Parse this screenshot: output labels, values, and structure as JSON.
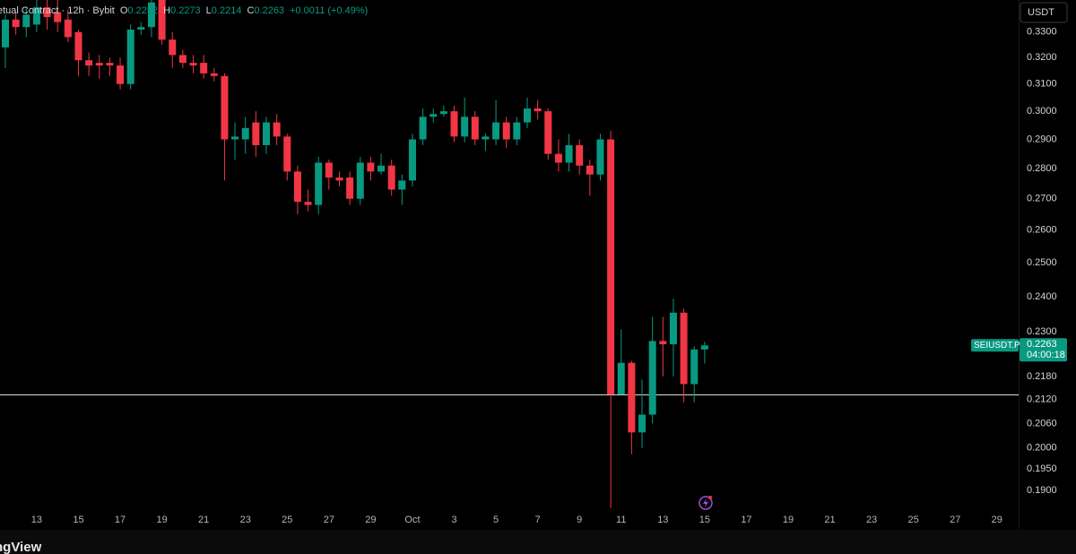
{
  "chart_data": {
    "type": "candlestick",
    "header": {
      "name": "etual Contract · 12h · Bybit",
      "o_label": "O",
      "h_label": "H",
      "l_label": "L",
      "c_label": "C",
      "change": "+0.0011 (+0.49%)"
    },
    "currency_button": "USDT",
    "countdown": "04:00:18",
    "footer": "ngView",
    "categories": [
      null,
      null,
      null,
      null,
      null,
      null,
      null,
      null,
      null,
      null,
      null,
      null,
      null,
      null,
      null,
      null,
      null,
      null,
      null,
      null,
      null,
      null,
      null,
      null,
      null,
      null,
      null,
      null,
      null,
      null,
      null,
      null,
      null,
      null,
      null,
      null,
      null,
      null,
      null,
      null,
      null,
      null,
      null,
      null,
      null,
      null,
      null,
      null,
      null,
      null,
      null,
      null,
      null,
      null,
      null,
      null,
      null,
      null,
      null,
      null,
      null,
      null,
      null,
      null,
      null,
      null,
      null,
      null
    ],
    "xticks": [
      "13",
      "15",
      "17",
      "19",
      "21",
      "23",
      "25",
      "27",
      "29",
      "Oct",
      "3",
      "5",
      "7",
      "9",
      "11",
      "13",
      "15",
      "17",
      "19",
      "21",
      "23",
      "25",
      "27",
      "29"
    ],
    "series": [
      {
        "name": "SEIUSDT.P",
        "up_color": "#089981",
        "down_color": "#f23645",
        "open": [
          0.324,
          0.335,
          0.332,
          0.333,
          0.34,
          0.338,
          0.335,
          0.33,
          0.319,
          0.318,
          0.318,
          0.317,
          0.31,
          0.331,
          0.332,
          0.343,
          0.327,
          0.321,
          0.318,
          0.318,
          0.314,
          0.313,
          0.29,
          0.29,
          0.296,
          0.288,
          0.296,
          0.291,
          0.279,
          0.269,
          0.268,
          0.282,
          0.277,
          0.277,
          0.27,
          0.282,
          0.279,
          0.281,
          0.273,
          0.276,
          0.29,
          0.298,
          0.299,
          0.3,
          0.291,
          0.298,
          0.29,
          0.29,
          0.296,
          0.29,
          0.296,
          0.301,
          0.3,
          0.285,
          0.282,
          0.288,
          0.281,
          0.278,
          0.29,
          0.2133,
          0.2216,
          0.2038,
          0.2082,
          0.2275,
          0.2266,
          0.2354,
          0.216,
          0.2252
        ],
        "high": [
          0.337,
          0.338,
          0.34,
          0.343,
          0.343,
          0.343,
          0.339,
          0.331,
          0.322,
          0.321,
          0.32,
          0.32,
          0.333,
          0.334,
          0.343,
          0.343,
          0.33,
          0.323,
          0.321,
          0.321,
          0.316,
          0.314,
          0.296,
          0.298,
          0.3,
          0.298,
          0.299,
          0.292,
          0.281,
          0.273,
          0.284,
          0.283,
          0.279,
          0.279,
          0.284,
          0.284,
          0.285,
          0.283,
          0.278,
          0.292,
          0.301,
          0.301,
          0.302,
          0.302,
          0.305,
          0.3,
          0.292,
          0.304,
          0.298,
          0.298,
          0.305,
          0.304,
          0.301,
          0.29,
          0.292,
          0.29,
          0.283,
          0.292,
          0.293,
          0.2307,
          0.2221,
          0.2172,
          0.2342,
          0.2342,
          0.2394,
          0.2365,
          0.226,
          0.2273
        ],
        "low": [
          0.316,
          0.329,
          0.328,
          0.33,
          0.331,
          0.33,
          0.326,
          0.313,
          0.313,
          0.312,
          0.313,
          0.308,
          0.308,
          0.329,
          0.328,
          0.325,
          0.316,
          0.316,
          0.314,
          0.312,
          0.311,
          0.276,
          0.283,
          0.285,
          0.284,
          0.285,
          0.288,
          0.276,
          0.265,
          0.266,
          0.265,
          0.273,
          0.274,
          0.268,
          0.268,
          0.276,
          0.278,
          0.271,
          0.268,
          0.274,
          0.288,
          0.296,
          0.298,
          0.289,
          0.289,
          0.288,
          0.286,
          0.288,
          0.287,
          0.288,
          0.294,
          0.297,
          0.283,
          0.279,
          0.279,
          0.278,
          0.271,
          0.276,
          0.186,
          0.2133,
          0.1985,
          0.2,
          0.206,
          0.218,
          0.218,
          0.2113,
          0.2113,
          0.2214
        ],
        "close": [
          0.335,
          0.332,
          0.337,
          0.34,
          0.336,
          0.334,
          0.328,
          0.319,
          0.317,
          0.317,
          0.317,
          0.31,
          0.331,
          0.332,
          0.342,
          0.327,
          0.321,
          0.318,
          0.317,
          0.314,
          0.313,
          0.29,
          0.291,
          0.294,
          0.288,
          0.296,
          0.291,
          0.279,
          0.269,
          0.268,
          0.282,
          0.277,
          0.276,
          0.27,
          0.282,
          0.279,
          0.281,
          0.273,
          0.276,
          0.29,
          0.298,
          0.299,
          0.3,
          0.291,
          0.298,
          0.29,
          0.291,
          0.296,
          0.29,
          0.296,
          0.301,
          0.3,
          0.285,
          0.282,
          0.288,
          0.281,
          0.278,
          0.29,
          0.2133,
          0.2216,
          0.2038,
          0.2082,
          0.2275,
          0.2266,
          0.2354,
          0.216,
          0.2252,
          0.2263
        ]
      }
    ],
    "reference_line": 0.2133,
    "ylim": [
      0.185,
      0.343
    ],
    "log_scale": true,
    "grid": false,
    "yticks": [
      {
        "value": 0.33,
        "label": "0.3300"
      },
      {
        "value": 0.32,
        "label": "0.3200"
      },
      {
        "value": 0.31,
        "label": "0.3100"
      },
      {
        "value": 0.3,
        "label": "0.3000"
      },
      {
        "value": 0.29,
        "label": "0.2900"
      },
      {
        "value": 0.28,
        "label": "0.2800"
      },
      {
        "value": 0.27,
        "label": "0.2700"
      },
      {
        "value": 0.26,
        "label": "0.2600"
      },
      {
        "value": 0.25,
        "label": "0.2500"
      },
      {
        "value": 0.24,
        "label": "0.2400"
      },
      {
        "value": 0.23,
        "label": "0.2300"
      },
      {
        "value": 0.218,
        "label": "0.2180"
      },
      {
        "value": 0.212,
        "label": "0.2120"
      },
      {
        "value": 0.206,
        "label": "0.2060"
      },
      {
        "value": 0.2,
        "label": "0.2000"
      },
      {
        "value": 0.195,
        "label": "0.1950"
      },
      {
        "value": 0.19,
        "label": "0.1900"
      }
    ]
  }
}
